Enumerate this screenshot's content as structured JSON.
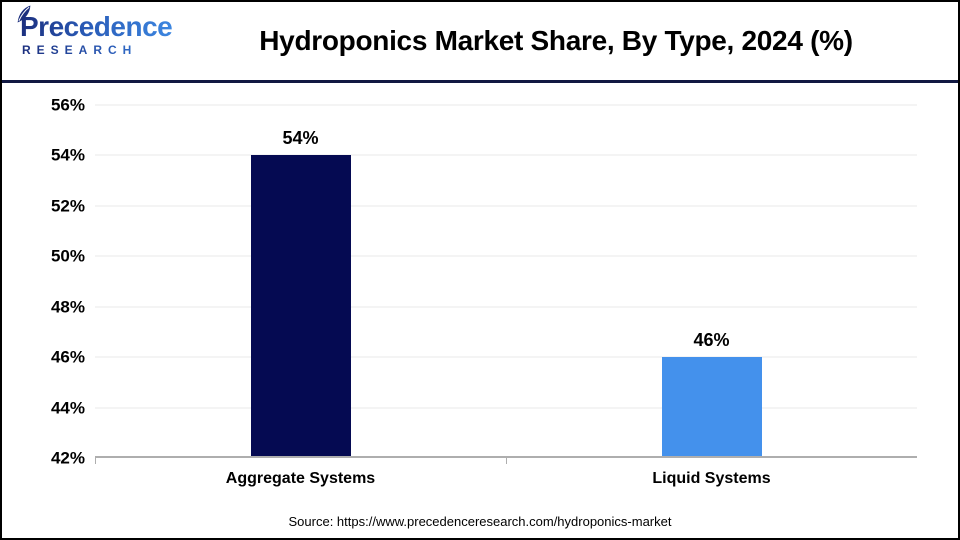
{
  "header": {
    "logo": {
      "line1": "Precedence",
      "line2": "RESEARCH"
    },
    "title": "Hydroponics Market Share, By Type, 2024 (%)"
  },
  "chart_data": {
    "type": "bar",
    "title": "Hydroponics Market Share, By Type, 2024 (%)",
    "categories": [
      "Aggregate Systems",
      "Liquid Systems"
    ],
    "values": [
      54,
      46
    ],
    "value_labels": [
      "54%",
      "46%"
    ],
    "bar_colors": [
      "#050A52",
      "#4491EC"
    ],
    "xlabel": "",
    "ylabel": "",
    "ylim": [
      42,
      56
    ],
    "ytick_values": [
      42,
      44,
      46,
      48,
      50,
      52,
      54,
      56
    ],
    "ytick_labels": [
      "42%",
      "44%",
      "46%",
      "48%",
      "50%",
      "52%",
      "54%",
      "56%"
    ],
    "grid": true,
    "legend": false
  },
  "footer": {
    "source": "Source: https://www.precedenceresearch.com/hydroponics-market"
  },
  "colors": {
    "accent_navy": "#050A52",
    "accent_blue": "#4491EC",
    "separator_navy": "#111842",
    "gridline_gray": "#E9E9E9",
    "axis_gray": "#AEAEAE",
    "logo_navy": "#1C2F7E",
    "logo_blue": "#3C86E0"
  }
}
